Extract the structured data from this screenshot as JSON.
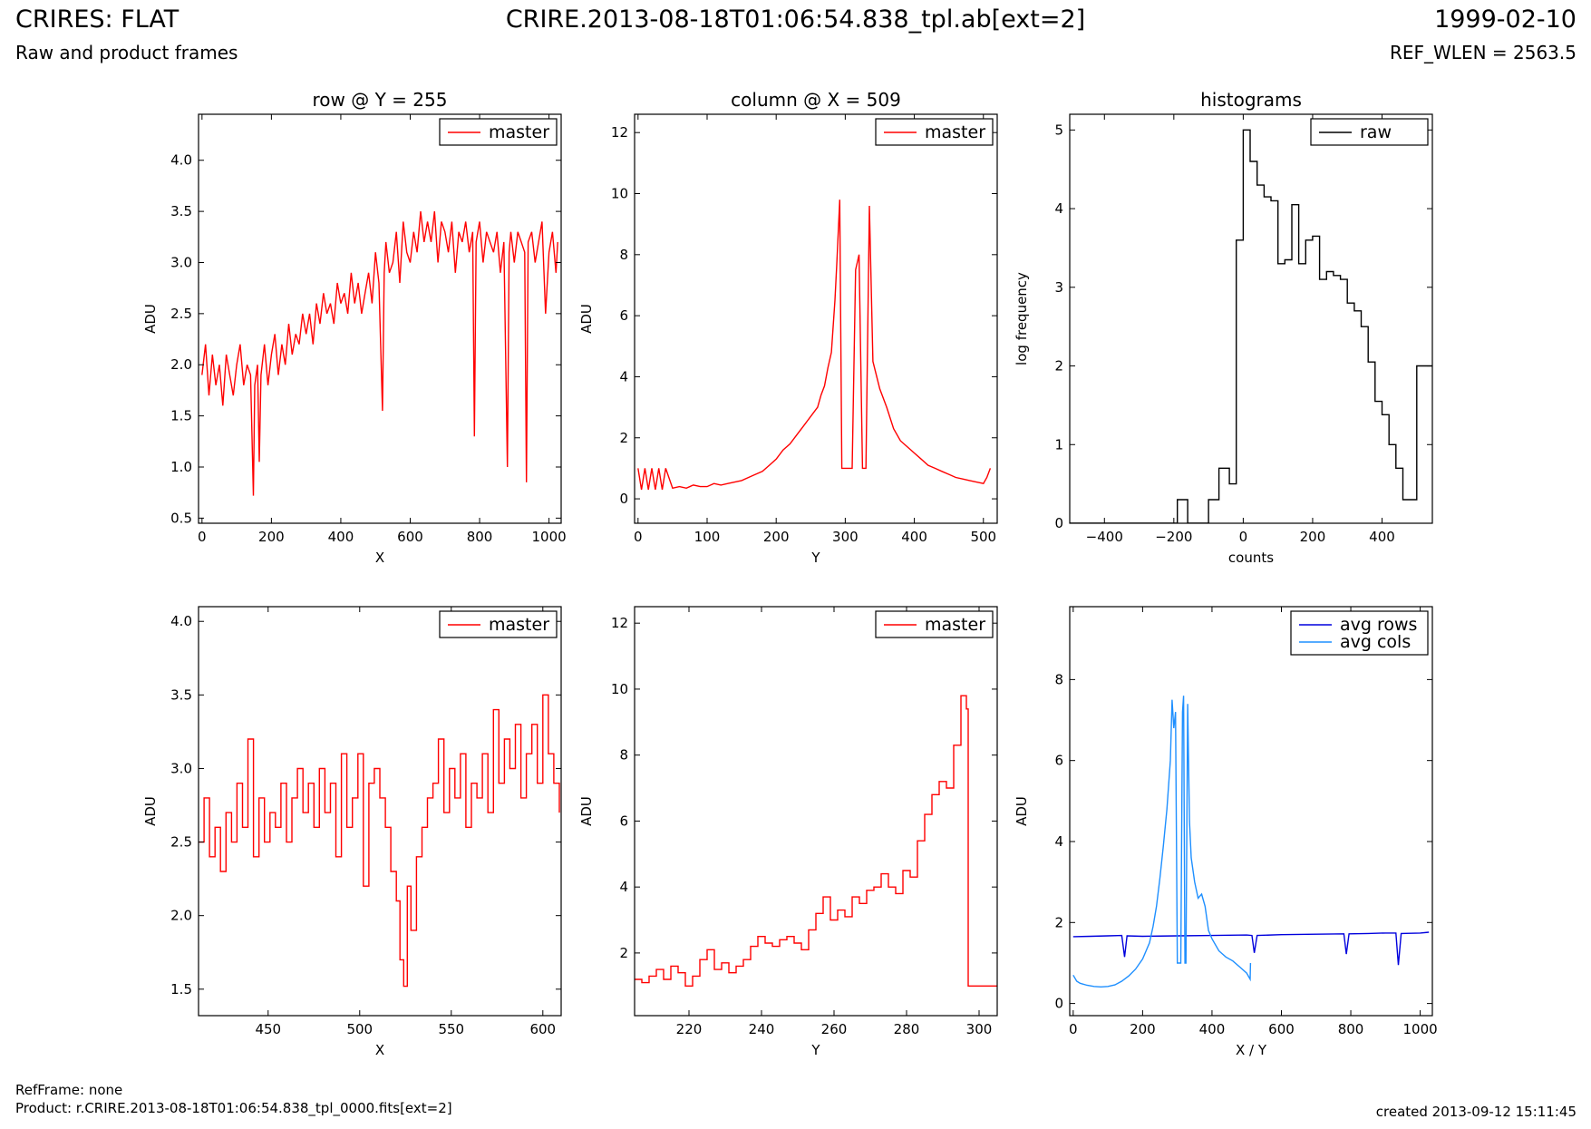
{
  "header": {
    "title": "CRIRES: FLAT",
    "subtitle": "Raw and product frames",
    "file": "CRIRE.2013-08-18T01:06:54.838_tpl.ab[ext=2]",
    "date": "1999-02-10",
    "ref_wlen": "REF_WLEN = 2563.5"
  },
  "footer": {
    "ref_frame": "RefFrame: none",
    "product": "Product: r.CRIRE.2013-08-18T01:06:54.838_tpl_0000.fits[ext=2]",
    "created": "created 2013-09-12 15:11:45"
  },
  "colors": {
    "master": "#ff0000",
    "raw": "#000000",
    "avg_rows": "#0000dd",
    "avg_cols": "#1e8fff"
  },
  "chart_data": [
    {
      "type": "line",
      "title": "row @ Y = 255",
      "xlabel": "X",
      "ylabel": "ADU",
      "xlim": [
        -10,
        1035
      ],
      "ylim": [
        0.45,
        4.45
      ],
      "xticks": [
        0,
        200,
        400,
        600,
        800,
        1000
      ],
      "yticks": [
        0.5,
        1.0,
        1.5,
        2.0,
        2.5,
        3.0,
        3.5,
        4.0
      ],
      "legend": "top-right",
      "series": [
        {
          "name": "master",
          "color": "#ff0000",
          "x": [
            0,
            10,
            20,
            30,
            40,
            50,
            60,
            70,
            80,
            90,
            100,
            110,
            120,
            130,
            140,
            148,
            152,
            160,
            165,
            170,
            180,
            190,
            200,
            210,
            220,
            230,
            240,
            250,
            260,
            270,
            280,
            290,
            300,
            310,
            320,
            330,
            340,
            350,
            360,
            370,
            380,
            390,
            400,
            410,
            420,
            430,
            440,
            450,
            460,
            470,
            480,
            490,
            500,
            510,
            520,
            525,
            530,
            540,
            550,
            560,
            570,
            580,
            590,
            600,
            610,
            620,
            630,
            640,
            650,
            660,
            670,
            680,
            690,
            700,
            710,
            720,
            730,
            740,
            750,
            760,
            770,
            780,
            785,
            790,
            800,
            810,
            820,
            830,
            840,
            850,
            860,
            870,
            880,
            885,
            890,
            900,
            910,
            920,
            930,
            935,
            940,
            950,
            960,
            970,
            980,
            990,
            1000,
            1010,
            1020,
            1025
          ],
          "y": [
            1.9,
            2.2,
            1.7,
            2.1,
            1.8,
            2.0,
            1.6,
            2.1,
            1.9,
            1.7,
            2.0,
            2.2,
            1.8,
            2.0,
            1.9,
            0.72,
            1.8,
            2.0,
            1.05,
            1.9,
            2.2,
            1.8,
            2.1,
            2.3,
            1.9,
            2.2,
            2.0,
            2.4,
            2.1,
            2.3,
            2.2,
            2.5,
            2.3,
            2.5,
            2.2,
            2.6,
            2.4,
            2.7,
            2.5,
            2.6,
            2.4,
            2.8,
            2.6,
            2.7,
            2.5,
            2.9,
            2.6,
            2.8,
            2.5,
            2.7,
            2.9,
            2.6,
            3.1,
            2.8,
            1.55,
            2.9,
            3.2,
            2.9,
            3.0,
            3.3,
            2.8,
            3.4,
            3.1,
            3.0,
            3.3,
            3.1,
            3.5,
            3.2,
            3.4,
            3.2,
            3.5,
            3.0,
            3.4,
            3.3,
            3.1,
            3.4,
            2.9,
            3.3,
            3.2,
            3.4,
            3.1,
            3.3,
            1.3,
            3.2,
            3.4,
            3.0,
            3.3,
            3.2,
            3.1,
            3.3,
            2.9,
            3.2,
            1.0,
            3.1,
            3.3,
            3.0,
            3.3,
            3.2,
            3.1,
            0.85,
            3.2,
            3.3,
            3.0,
            3.2,
            3.4,
            2.5,
            3.1,
            3.3,
            2.9,
            3.2
          ]
        }
      ]
    },
    {
      "type": "line",
      "title": "column @ X = 509",
      "xlabel": "Y",
      "ylabel": "ADU",
      "xlim": [
        -5,
        520
      ],
      "ylim": [
        -0.8,
        12.6
      ],
      "xticks": [
        0,
        100,
        200,
        300,
        400,
        500
      ],
      "yticks": [
        0,
        2,
        4,
        6,
        8,
        10,
        12
      ],
      "legend": "top-right",
      "series": [
        {
          "name": "master",
          "color": "#ff0000",
          "x": [
            0,
            5,
            10,
            15,
            20,
            25,
            30,
            35,
            40,
            50,
            60,
            70,
            80,
            90,
            100,
            110,
            120,
            130,
            140,
            150,
            160,
            170,
            180,
            190,
            200,
            210,
            220,
            230,
            240,
            250,
            260,
            265,
            270,
            275,
            280,
            285,
            288,
            292,
            295,
            300,
            310,
            315,
            320,
            325,
            330,
            335,
            340,
            350,
            360,
            370,
            380,
            390,
            400,
            410,
            420,
            430,
            440,
            450,
            460,
            470,
            480,
            490,
            500,
            505,
            510
          ],
          "y": [
            1.0,
            0.3,
            1.0,
            0.3,
            1.0,
            0.3,
            1.0,
            0.3,
            1.0,
            0.35,
            0.4,
            0.35,
            0.45,
            0.4,
            0.4,
            0.5,
            0.45,
            0.5,
            0.55,
            0.6,
            0.7,
            0.8,
            0.9,
            1.1,
            1.3,
            1.6,
            1.8,
            2.1,
            2.4,
            2.7,
            3.0,
            3.4,
            3.7,
            4.3,
            4.8,
            6.5,
            7.8,
            9.8,
            1.0,
            1.0,
            1.0,
            7.5,
            8.0,
            1.0,
            1.0,
            9.6,
            4.5,
            3.6,
            3.0,
            2.3,
            1.9,
            1.7,
            1.5,
            1.3,
            1.1,
            1.0,
            0.9,
            0.8,
            0.7,
            0.65,
            0.6,
            0.55,
            0.5,
            0.7,
            1.0
          ]
        }
      ]
    },
    {
      "type": "line",
      "title": "histograms",
      "xlabel": "counts",
      "ylabel": "log frequency",
      "xlim": [
        -500,
        545
      ],
      "ylim": [
        0,
        5.2
      ],
      "xticks": [
        -400,
        -200,
        0,
        200,
        400
      ],
      "yticks": [
        0,
        1,
        2,
        3,
        4,
        5
      ],
      "legend": "top-right",
      "series": [
        {
          "name": "raw",
          "color": "#000000",
          "step": true,
          "x": [
            -500,
            -220,
            -190,
            -160,
            -130,
            -100,
            -70,
            -40,
            -20,
            0,
            20,
            40,
            60,
            80,
            100,
            120,
            140,
            160,
            180,
            200,
            220,
            240,
            260,
            280,
            300,
            320,
            340,
            360,
            380,
            400,
            420,
            440,
            460,
            480,
            500,
            520,
            545
          ],
          "y": [
            0,
            0,
            0.3,
            0,
            0,
            0.3,
            0.7,
            0.5,
            3.6,
            5.0,
            4.6,
            4.3,
            4.15,
            4.1,
            3.3,
            3.35,
            4.05,
            3.3,
            3.6,
            3.65,
            3.1,
            3.2,
            3.15,
            3.1,
            2.8,
            2.7,
            2.5,
            2.05,
            1.55,
            1.38,
            1.0,
            0.7,
            0.3,
            0.3,
            2.0,
            2.0,
            2.0
          ]
        }
      ]
    },
    {
      "type": "line",
      "xlabel": "X",
      "ylabel": "ADU",
      "xlim": [
        412,
        610
      ],
      "ylim": [
        1.32,
        4.1
      ],
      "xticks": [
        450,
        500,
        550,
        600
      ],
      "yticks": [
        1.5,
        2.0,
        2.5,
        3.0,
        3.5,
        4.0
      ],
      "legend": "top-right",
      "series": [
        {
          "name": "master",
          "color": "#ff0000",
          "step": true,
          "x": [
            412,
            415,
            418,
            421,
            424,
            427,
            430,
            433,
            436,
            439,
            442,
            445,
            448,
            451,
            454,
            457,
            460,
            463,
            466,
            469,
            472,
            475,
            478,
            481,
            484,
            487,
            490,
            493,
            496,
            499,
            502,
            505,
            508,
            511,
            514,
            517,
            520,
            522,
            524,
            526,
            528,
            531,
            534,
            537,
            540,
            543,
            546,
            549,
            552,
            555,
            558,
            561,
            564,
            567,
            570,
            573,
            576,
            579,
            582,
            585,
            588,
            591,
            594,
            597,
            600,
            603,
            606,
            609
          ],
          "y": [
            2.5,
            2.8,
            2.4,
            2.6,
            2.3,
            2.7,
            2.5,
            2.9,
            2.6,
            3.2,
            2.4,
            2.8,
            2.5,
            2.7,
            2.6,
            2.9,
            2.5,
            2.8,
            3.0,
            2.7,
            2.9,
            2.6,
            3.0,
            2.7,
            2.9,
            2.4,
            3.1,
            2.6,
            2.8,
            3.1,
            2.2,
            2.9,
            3.0,
            2.8,
            2.6,
            2.3,
            2.1,
            1.7,
            1.52,
            2.2,
            1.9,
            2.4,
            2.6,
            2.8,
            2.9,
            3.2,
            2.7,
            3.0,
            2.8,
            3.1,
            2.6,
            2.9,
            2.8,
            3.1,
            2.7,
            3.4,
            2.9,
            3.2,
            3.0,
            3.3,
            2.8,
            3.1,
            3.3,
            2.9,
            3.5,
            3.1,
            2.9,
            2.7
          ]
        }
      ]
    },
    {
      "type": "line",
      "xlabel": "Y",
      "ylabel": "ADU",
      "xlim": [
        205,
        305
      ],
      "ylim": [
        0.1,
        12.5
      ],
      "xticks": [
        220,
        240,
        260,
        280,
        300
      ],
      "yticks": [
        2,
        4,
        6,
        8,
        10,
        12
      ],
      "legend": "top-right",
      "series": [
        {
          "name": "master",
          "color": "#ff0000",
          "step": true,
          "x": [
            205,
            207,
            209,
            211,
            213,
            215,
            217,
            219,
            221,
            223,
            225,
            227,
            229,
            231,
            233,
            235,
            237,
            239,
            241,
            243,
            245,
            247,
            249,
            251,
            253,
            255,
            257,
            259,
            261,
            263,
            265,
            267,
            269,
            271,
            273,
            275,
            277,
            279,
            281,
            283,
            285,
            287,
            289,
            291,
            293,
            295,
            296.5,
            297,
            300,
            305
          ],
          "y": [
            1.2,
            1.1,
            1.3,
            1.5,
            1.2,
            1.6,
            1.4,
            1.0,
            1.3,
            1.8,
            2.1,
            1.5,
            1.7,
            1.4,
            1.6,
            1.8,
            2.2,
            2.5,
            2.3,
            2.2,
            2.4,
            2.5,
            2.3,
            2.1,
            2.7,
            3.2,
            3.7,
            3.0,
            3.3,
            3.1,
            3.7,
            3.5,
            3.9,
            4.0,
            4.4,
            4.0,
            3.8,
            4.5,
            4.3,
            5.4,
            6.2,
            6.8,
            7.2,
            7.0,
            8.3,
            9.8,
            9.4,
            1.0,
            1.0,
            1.0
          ]
        }
      ]
    },
    {
      "type": "line",
      "xlabel": "X / Y",
      "ylabel": "ADU",
      "xlim": [
        -10,
        1035
      ],
      "ylim": [
        -0.3,
        9.8
      ],
      "xticks": [
        0,
        200,
        400,
        600,
        800,
        1000
      ],
      "yticks": [
        0,
        2,
        4,
        6,
        8
      ],
      "legend": "top-right",
      "series": [
        {
          "name": "avg rows",
          "color": "#0000dd",
          "x": [
            0,
            50,
            100,
            140,
            148,
            155,
            200,
            300,
            400,
            500,
            515,
            522,
            530,
            600,
            700,
            780,
            787,
            795,
            850,
            900,
            930,
            937,
            945,
            1000,
            1025
          ],
          "y": [
            1.65,
            1.66,
            1.67,
            1.68,
            1.15,
            1.67,
            1.66,
            1.67,
            1.68,
            1.69,
            1.68,
            1.25,
            1.68,
            1.7,
            1.71,
            1.72,
            1.22,
            1.72,
            1.73,
            1.74,
            1.74,
            0.95,
            1.73,
            1.74,
            1.76
          ]
        },
        {
          "name": "avg cols",
          "color": "#1e8fff",
          "x": [
            0,
            10,
            20,
            40,
            60,
            80,
            100,
            120,
            140,
            160,
            180,
            200,
            210,
            220,
            230,
            240,
            250,
            260,
            270,
            280,
            285,
            290,
            295,
            300,
            305,
            310,
            315,
            318,
            322,
            325,
            330,
            335,
            340,
            350,
            360,
            370,
            380,
            390,
            400,
            420,
            440,
            460,
            480,
            500,
            510,
            511
          ],
          "y": [
            0.7,
            0.55,
            0.5,
            0.45,
            0.42,
            0.41,
            0.42,
            0.46,
            0.55,
            0.68,
            0.85,
            1.1,
            1.3,
            1.5,
            1.9,
            2.4,
            3.1,
            3.9,
            4.8,
            6.0,
            7.5,
            6.8,
            7.2,
            1.0,
            1.0,
            1.0,
            7.2,
            7.6,
            1.0,
            1.0,
            7.4,
            4.5,
            3.6,
            3.0,
            2.6,
            2.7,
            2.4,
            1.8,
            1.6,
            1.3,
            1.15,
            1.05,
            0.9,
            0.75,
            0.6,
            1.0
          ]
        }
      ]
    }
  ]
}
